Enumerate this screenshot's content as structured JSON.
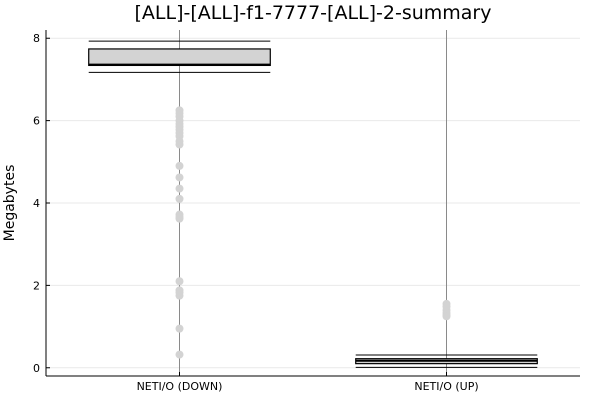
{
  "chart_data": {
    "type": "box",
    "title": "[ALL]-[ALL]-f1-7777-[ALL]-2-summary",
    "xlabel": "",
    "ylabel": "Megabytes",
    "ylim": [
      -0.2,
      8.2
    ],
    "y_ticks": [
      0,
      2,
      4,
      6,
      8
    ],
    "grid": true,
    "legend": "none",
    "categories": [
      "NETI/O (DOWN)",
      "NETI/O (UP)"
    ],
    "series": [
      {
        "q1": 7.34,
        "median": 7.36,
        "q3": 7.74,
        "whisker_low": 7.17,
        "whisker_high": 7.93,
        "outliers": [
          6.25,
          6.18,
          6.1,
          6.0,
          5.92,
          5.85,
          5.78,
          5.7,
          5.62,
          5.5,
          5.42,
          4.9,
          4.62,
          4.35,
          4.1,
          3.72,
          3.66,
          3.62,
          2.1,
          1.88,
          1.82,
          1.75,
          0.95,
          0.32
        ]
      },
      {
        "q1": 0.1,
        "median": 0.17,
        "q3": 0.22,
        "whisker_low": 0.01,
        "whisker_high": 0.31,
        "outliers": [
          1.55,
          1.48,
          1.4,
          1.33,
          1.28,
          1.25
        ]
      }
    ],
    "colors": {
      "box_fill": "#d3d3d3",
      "outline": "#000000",
      "outlier": "#d3d3d3",
      "grid": "#e9e9e9",
      "axis": "#000000",
      "centerline": "#8a8a8a"
    }
  }
}
